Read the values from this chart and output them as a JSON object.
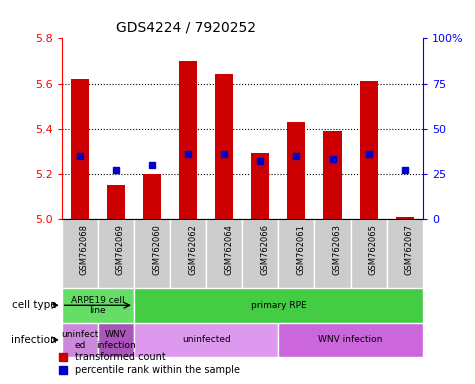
{
  "title": "GDS4224 / 7920252",
  "samples": [
    "GSM762068",
    "GSM762069",
    "GSM762060",
    "GSM762062",
    "GSM762064",
    "GSM762066",
    "GSM762061",
    "GSM762063",
    "GSM762065",
    "GSM762067"
  ],
  "bar_values": [
    5.62,
    5.15,
    5.2,
    5.7,
    5.64,
    5.29,
    5.43,
    5.39,
    5.61,
    5.01
  ],
  "dot_values": [
    35,
    27,
    30,
    36,
    36,
    32,
    35,
    33,
    36,
    27
  ],
  "bar_base": 5.0,
  "ylim": [
    5.0,
    5.8
  ],
  "y_ticks": [
    5.0,
    5.2,
    5.4,
    5.6,
    5.8
  ],
  "y2_ticks": [
    0,
    25,
    50,
    75,
    100
  ],
  "bar_color": "#cc0000",
  "dot_color": "#0000cc",
  "cell_type_groups": [
    {
      "label": "ARPE19 cell\nline",
      "start": 0,
      "end": 2,
      "color": "#66dd66"
    },
    {
      "label": "primary RPE",
      "start": 2,
      "end": 10,
      "color": "#44cc44"
    }
  ],
  "infection_groups": [
    {
      "label": "uninfect\ned",
      "start": 0,
      "end": 1,
      "color": "#cc88dd"
    },
    {
      "label": "WNV\ninfection",
      "start": 1,
      "end": 2,
      "color": "#aa55bb"
    },
    {
      "label": "uninfected",
      "start": 2,
      "end": 6,
      "color": "#dd99ee"
    },
    {
      "label": "WNV infection",
      "start": 6,
      "end": 10,
      "color": "#cc66dd"
    }
  ],
  "legend_items": [
    {
      "label": "transformed count",
      "color": "#cc0000"
    },
    {
      "label": "percentile rank within the sample",
      "color": "#0000cc"
    }
  ],
  "sample_bg_color": "#cccccc",
  "plot_bg_color": "#ffffff"
}
